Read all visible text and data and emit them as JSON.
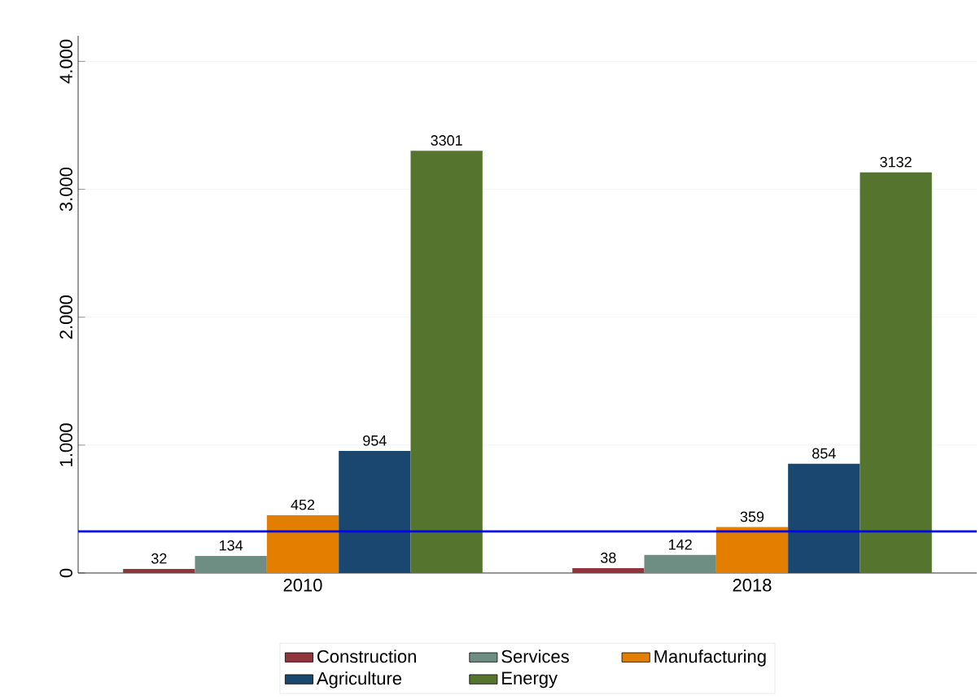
{
  "chart_data": {
    "type": "bar",
    "categories": [
      "2010",
      "2018"
    ],
    "series": [
      {
        "name": "Construction",
        "color": "#90353b",
        "values": [
          32,
          38
        ]
      },
      {
        "name": "Services",
        "color": "#6e8e84",
        "values": [
          134,
          142
        ]
      },
      {
        "name": "Manufacturing",
        "color": "#e37e00",
        "values": [
          452,
          359
        ]
      },
      {
        "name": "Agriculture",
        "color": "#1a476f",
        "values": [
          954,
          854
        ]
      },
      {
        "name": "Energy",
        "color": "#55752f",
        "values": [
          3301,
          3132
        ]
      }
    ],
    "ylim": [
      0,
      4200
    ],
    "yticks": [
      0,
      {
        "value": 1000,
        "label": "1.000"
      },
      {
        "value": 2000,
        "label": "2.000"
      },
      {
        "value": 3000,
        "label": "3.000"
      },
      {
        "value": 4000,
        "label": "4.000"
      }
    ],
    "ref_lines": [
      {
        "axis": "y",
        "value": 325,
        "color": "#0000ff"
      }
    ],
    "data_labels": true,
    "grid": "y",
    "legend": "bottom"
  }
}
